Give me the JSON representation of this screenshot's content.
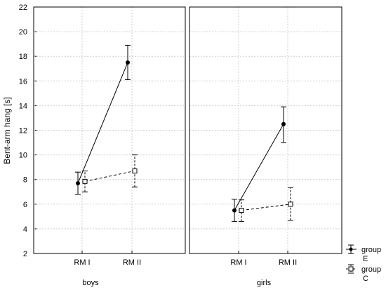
{
  "chart_data": {
    "type": "line",
    "ylabel": "Bent-arm hang [s]",
    "ylim": [
      2,
      22
    ],
    "yticks": [
      2,
      4,
      6,
      8,
      10,
      12,
      14,
      16,
      18,
      20,
      22
    ],
    "grid": true,
    "legend_position": "bottom-right",
    "panels": [
      {
        "label": "boys",
        "categories": [
          "RM I",
          "RM II"
        ],
        "series": [
          {
            "name": "group E",
            "values": [
              7.7,
              17.5
            ],
            "err_low": [
              6.8,
              16.1
            ],
            "err_high": [
              8.6,
              18.9
            ]
          },
          {
            "name": "group C",
            "values": [
              7.85,
              8.7
            ],
            "err_low": [
              7.0,
              7.4
            ],
            "err_high": [
              8.7,
              10.0
            ]
          }
        ]
      },
      {
        "label": "girls",
        "categories": [
          "RM I",
          "RM II"
        ],
        "series": [
          {
            "name": "group E",
            "values": [
              5.5,
              12.5
            ],
            "err_low": [
              4.6,
              11.0
            ],
            "err_high": [
              6.4,
              13.9
            ]
          },
          {
            "name": "group C",
            "values": [
              5.5,
              6.0
            ],
            "err_low": [
              4.6,
              4.7
            ],
            "err_high": [
              6.35,
              7.35
            ]
          }
        ]
      }
    ],
    "legend": [
      {
        "line1": "group",
        "line2": "E",
        "style": "solid",
        "marker": "circle"
      },
      {
        "line1": "group",
        "line2": "C",
        "style": "dashed",
        "marker": "square"
      }
    ]
  }
}
